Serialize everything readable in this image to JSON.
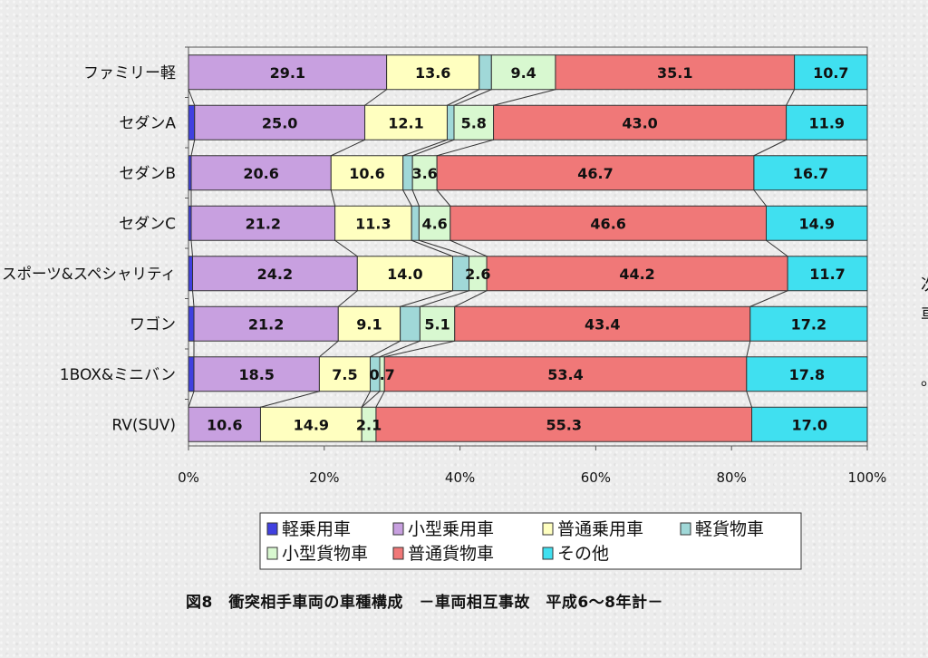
{
  "chart_data": {
    "type": "bar",
    "orientation": "horizontal",
    "stacked": "percent",
    "categories": [
      "ファミリー軽",
      "セダンA",
      "セダンB",
      "セダンC",
      "スポーツ&スペシャリティ",
      "ワゴン",
      "1BOX&ミニバン",
      "RV(SUV)"
    ],
    "series": [
      {
        "name": "軽乗用車",
        "color": "#4040e0",
        "values": [
          0.0,
          0.9,
          0.4,
          0.4,
          0.6,
          0.8,
          0.8,
          0.0
        ]
      },
      {
        "name": "小型乗用車",
        "color": "#c8a0e0",
        "values": [
          29.1,
          25.0,
          20.6,
          21.2,
          24.2,
          21.2,
          18.5,
          10.6
        ]
      },
      {
        "name": "普通乗用車",
        "color": "#ffffc0",
        "values": [
          13.6,
          12.1,
          10.6,
          11.3,
          14.0,
          9.1,
          7.5,
          14.9
        ]
      },
      {
        "name": "軽貨物車",
        "color": "#a0d8d8",
        "values": [
          1.8,
          1.0,
          1.4,
          1.1,
          2.4,
          2.9,
          1.4,
          0.0
        ]
      },
      {
        "name": "小型貨物車",
        "color": "#d8f8d0",
        "values": [
          9.4,
          5.8,
          3.6,
          4.6,
          2.6,
          5.1,
          0.7,
          2.1
        ]
      },
      {
        "name": "普通貨物車",
        "color": "#f07878",
        "values": [
          35.1,
          43.0,
          46.7,
          46.6,
          44.2,
          43.4,
          53.4,
          55.3
        ]
      },
      {
        "name": "その他",
        "color": "#40e0f0",
        "values": [
          10.7,
          11.9,
          16.7,
          14.9,
          11.7,
          17.2,
          17.8,
          17.0
        ]
      }
    ],
    "data_labels": [
      {
        "row": 0,
        "labels": [
          "",
          "29.1",
          "13.6",
          "",
          "9.4",
          "35.1",
          "10.7"
        ]
      },
      {
        "row": 1,
        "labels": [
          "",
          "25.0",
          "12.1",
          "",
          "5.8",
          "43.0",
          "11.9"
        ]
      },
      {
        "row": 2,
        "labels": [
          "",
          "20.6",
          "10.6",
          "",
          "3.6",
          "46.7",
          "16.7"
        ]
      },
      {
        "row": 3,
        "labels": [
          "",
          "21.2",
          "11.3",
          "",
          "4.6",
          "46.6",
          "14.9"
        ]
      },
      {
        "row": 4,
        "labels": [
          "",
          "24.2",
          "14.0",
          "",
          "2.6",
          "44.2",
          "11.7"
        ]
      },
      {
        "row": 5,
        "labels": [
          "",
          "21.2",
          "9.1",
          "",
          "5.1",
          "43.4",
          "17.2"
        ]
      },
      {
        "row": 6,
        "labels": [
          "",
          "18.5",
          "7.5",
          "",
          "0.7",
          "53.4",
          "17.8"
        ]
      },
      {
        "row": 7,
        "labels": [
          "",
          "10.6",
          "14.9",
          "",
          "2.1",
          "55.3",
          "17.0"
        ]
      }
    ],
    "xlim": [
      0,
      100
    ],
    "xticks": [
      "0%",
      "20%",
      "40%",
      "60%",
      "80%",
      "100%"
    ],
    "legend_position": "bottom",
    "series_lines": true
  },
  "caption": "図8　衝突相手車両の車種構成　－車両相互事故　平成6～8年計－",
  "side_fragments": [
    "次",
    "車",
    "。"
  ]
}
